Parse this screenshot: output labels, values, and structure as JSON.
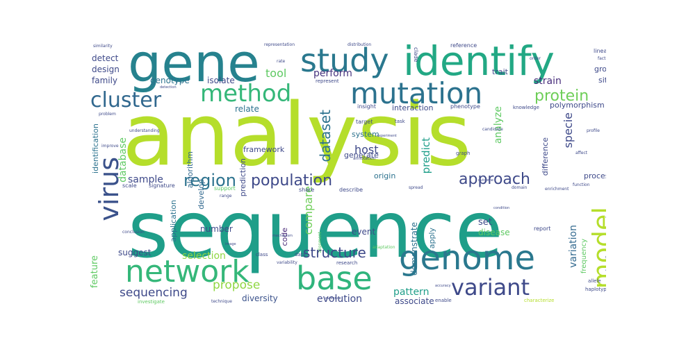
{
  "word_cloud": {
    "words": [
      {
        "id": "analysis",
        "text": "analysis",
        "color": "#b5de2b"
      },
      {
        "id": "sequence",
        "text": "sequence",
        "color": "#1f9e89"
      },
      {
        "id": "gene",
        "text": "gene",
        "color": "#26828e"
      },
      {
        "id": "identify",
        "text": "identify",
        "color": "#22a884"
      },
      {
        "id": "study",
        "text": "study",
        "color": "#2a788e"
      },
      {
        "id": "mutation",
        "text": "mutation",
        "color": "#2c728e"
      },
      {
        "id": "method",
        "text": "method",
        "color": "#35b779"
      },
      {
        "id": "network",
        "text": "network",
        "color": "#35b779"
      },
      {
        "id": "base",
        "text": "base",
        "color": "#2fb47c"
      },
      {
        "id": "genome",
        "text": "genome",
        "color": "#2a788e"
      },
      {
        "id": "variant",
        "text": "variant",
        "color": "#3e4989"
      },
      {
        "id": "cluster",
        "text": "cluster",
        "color": "#31688e"
      },
      {
        "id": "virus",
        "text": "virus",
        "color": "#3b528b"
      },
      {
        "id": "model",
        "text": "model",
        "color": "#b5de2b"
      },
      {
        "id": "population",
        "text": "population",
        "color": "#3e4989"
      },
      {
        "id": "region",
        "text": "region",
        "color": "#2c728e"
      },
      {
        "id": "approach",
        "text": "approach",
        "color": "#3e4989"
      },
      {
        "id": "protein",
        "text": "protein",
        "color": "#6ece58"
      },
      {
        "id": "structure",
        "text": "structure",
        "color": "#3e4989"
      },
      {
        "id": "sequencing",
        "text": "sequencing",
        "color": "#3e4989"
      },
      {
        "id": "propose",
        "text": "propose",
        "color": "#90d743"
      },
      {
        "id": "dataset",
        "text": "dataset",
        "color": "#2c728e"
      },
      {
        "id": "tool",
        "text": "tool",
        "color": "#5ec962"
      },
      {
        "id": "perform",
        "text": "perform",
        "color": "#46337e"
      },
      {
        "id": "host",
        "text": "host",
        "color": "#3e4989"
      },
      {
        "id": "compare",
        "text": "compare",
        "color": "#6ece58"
      },
      {
        "id": "predict",
        "text": "predict",
        "color": "#1f9e89"
      },
      {
        "id": "analyze",
        "text": "analyze",
        "color": "#5ec962"
      },
      {
        "id": "specie",
        "text": "specie",
        "color": "#3e4989"
      },
      {
        "id": "strain",
        "text": "strain",
        "color": "#472d7b"
      },
      {
        "id": "information",
        "text": "information",
        "color": "#3e4989"
      },
      {
        "id": "variation",
        "text": "variation",
        "color": "#31688e"
      },
      {
        "id": "evolution",
        "text": "evolution",
        "color": "#3e4989"
      },
      {
        "id": "diversity",
        "text": "diversity",
        "color": "#3b528b"
      },
      {
        "id": "pattern",
        "text": "pattern",
        "color": "#1f9e89"
      },
      {
        "id": "associate",
        "text": "associate",
        "color": "#3e4989"
      },
      {
        "id": "selection",
        "text": "selection",
        "color": "#90d743"
      },
      {
        "id": "feature",
        "text": "feature",
        "color": "#5ec962"
      },
      {
        "id": "suggest",
        "text": "suggest",
        "color": "#3e4989"
      },
      {
        "id": "number",
        "text": "number",
        "color": "#3e4989"
      },
      {
        "id": "application",
        "text": "application",
        "color": "#2c728e"
      },
      {
        "id": "code",
        "text": "code",
        "color": "#482878"
      },
      {
        "id": "event",
        "text": "event",
        "color": "#3e4989"
      },
      {
        "id": "set",
        "text": "set",
        "color": "#3e4989"
      },
      {
        "id": "disease",
        "text": "disease",
        "color": "#5ec962"
      },
      {
        "id": "demonstrate",
        "text": "demonstrate",
        "color": "#2c728e"
      },
      {
        "id": "apply",
        "text": "apply",
        "color": "#2c728e"
      },
      {
        "id": "sample",
        "text": "sample",
        "color": "#3e4989"
      },
      {
        "id": "database",
        "text": "database",
        "color": "#5ec962"
      },
      {
        "id": "algorithm",
        "text": "algorithm",
        "color": "#31688e"
      },
      {
        "id": "develop",
        "text": "develop",
        "color": "#31688e"
      },
      {
        "id": "prediction",
        "text": "prediction",
        "color": "#3e4989"
      },
      {
        "id": "framework",
        "text": "framework",
        "color": "#3e4989"
      },
      {
        "id": "relate",
        "text": "relate",
        "color": "#2c728e"
      },
      {
        "id": "genotype",
        "text": "genotype",
        "color": "#2c728e"
      },
      {
        "id": "isolate",
        "text": "isolate",
        "color": "#3e4989"
      },
      {
        "id": "design",
        "text": "design",
        "color": "#3e4989"
      },
      {
        "id": "detect",
        "text": "detect",
        "color": "#3e4989"
      },
      {
        "id": "family",
        "text": "family",
        "color": "#3e4989"
      },
      {
        "id": "identification",
        "text": "identification",
        "color": "#2c728e"
      },
      {
        "id": "system",
        "text": "system",
        "color": "#2c728e"
      },
      {
        "id": "generate",
        "text": "generate",
        "color": "#3e4989"
      },
      {
        "id": "origin",
        "text": "origin",
        "color": "#2c728e"
      },
      {
        "id": "interaction",
        "text": "interaction",
        "color": "#3e4989"
      },
      {
        "id": "polymorphism",
        "text": "polymorphism",
        "color": "#3e4989"
      },
      {
        "id": "difference",
        "text": "difference",
        "color": "#3e4989"
      },
      {
        "id": "process",
        "text": "process",
        "color": "#3e4989"
      },
      {
        "id": "frequency",
        "text": "frequency",
        "color": "#5ec962"
      },
      {
        "id": "group",
        "text": "group",
        "color": "#3e4989"
      },
      {
        "id": "site",
        "text": "site",
        "color": "#3e4989"
      },
      {
        "id": "trait",
        "text": "trait",
        "color": "#3e4989"
      },
      {
        "id": "scale",
        "text": "scale",
        "color": "#3e4989"
      },
      {
        "id": "signature",
        "text": "signature",
        "color": "#3e4989"
      },
      {
        "id": "phenotype",
        "text": "phenotype",
        "color": "#3e4989"
      },
      {
        "id": "knowledge",
        "text": "knowledge",
        "color": "#3e4989"
      },
      {
        "id": "target",
        "text": "target",
        "color": "#3e4989"
      },
      {
        "id": "task",
        "text": "task",
        "color": "#3e4989"
      },
      {
        "id": "insight",
        "text": "insight",
        "color": "#3e4989"
      },
      {
        "id": "represent",
        "text": "represent",
        "color": "#3e4989"
      },
      {
        "id": "reference",
        "text": "reference",
        "color": "#3e4989"
      },
      {
        "id": "lineage",
        "text": "lineage",
        "color": "#3e4989"
      },
      {
        "id": "clade",
        "text": "clade",
        "color": "#3e4989"
      },
      {
        "id": "report",
        "text": "report",
        "color": "#3e4989"
      },
      {
        "id": "share",
        "text": "share",
        "color": "#3e4989"
      },
      {
        "id": "describe",
        "text": "describe",
        "color": "#3e4989"
      },
      {
        "id": "research",
        "text": "research",
        "color": "#3e4989"
      },
      {
        "id": "alignment",
        "text": "alignment",
        "color": "#5ec962"
      },
      {
        "id": "enable",
        "text": "enable",
        "color": "#3e4989"
      },
      {
        "id": "characterize",
        "text": "characterize",
        "color": "#b5de2b"
      },
      {
        "id": "allele",
        "text": "allele",
        "color": "#3e4989"
      },
      {
        "id": "haplotype",
        "text": "haplotype",
        "color": "#3e4989"
      },
      {
        "id": "investigate",
        "text": "investigate",
        "color": "#5ec962"
      },
      {
        "id": "data",
        "text": "data",
        "color": "#3e4989"
      },
      {
        "id": "class",
        "text": "class",
        "color": "#3e4989"
      },
      {
        "id": "conclusion",
        "text": "conclusion",
        "color": "#3e4989"
      },
      {
        "id": "understanding",
        "text": "understanding",
        "color": "#3e4989"
      },
      {
        "id": "graph",
        "text": "graph",
        "color": "#3e4989"
      },
      {
        "id": "candidate",
        "text": "candidate",
        "color": "#3e4989"
      },
      {
        "id": "support",
        "text": "support",
        "color": "#5ec962"
      },
      {
        "id": "range",
        "text": "range",
        "color": "#3e4989"
      },
      {
        "id": "spread",
        "text": "spread",
        "color": "#3e4989"
      },
      {
        "id": "function",
        "text": "function",
        "color": "#3e4989"
      },
      {
        "id": "profile",
        "text": "profile",
        "color": "#3e4989"
      },
      {
        "id": "annotation",
        "text": "annotation",
        "color": "#3e4989"
      },
      {
        "id": "representation",
        "text": "representation",
        "color": "#3e4989"
      },
      {
        "id": "distribution",
        "text": "distribution",
        "color": "#3e4989"
      },
      {
        "id": "similarity",
        "text": "similarity",
        "color": "#3e4989"
      },
      {
        "id": "factor",
        "text": "factor",
        "color": "#3e4989"
      },
      {
        "id": "collect",
        "text": "collect",
        "color": "#3e4989"
      },
      {
        "id": "order",
        "text": "order",
        "color": "#3e4989"
      },
      {
        "id": "affect",
        "text": "affect",
        "color": "#3e4989"
      },
      {
        "id": "improve",
        "text": "improve",
        "color": "#3e4989"
      },
      {
        "id": "problem",
        "text": "problem",
        "color": "#3e4989"
      },
      {
        "id": "image",
        "text": "image",
        "color": "#3e4989"
      },
      {
        "id": "rate",
        "text": "rate",
        "color": "#3e4989"
      },
      {
        "id": "mechanism",
        "text": "mechanism",
        "color": "#3e4989"
      },
      {
        "id": "technique",
        "text": "technique",
        "color": "#3e4989"
      },
      {
        "id": "variability",
        "text": "variability",
        "color": "#3e4989"
      },
      {
        "id": "experiment",
        "text": "experiment",
        "color": "#3e4989"
      },
      {
        "id": "adaptation",
        "text": "adaptation",
        "color": "#5ec962"
      },
      {
        "id": "condition",
        "text": "condition",
        "color": "#3e4989"
      },
      {
        "id": "accuracy",
        "text": "accuracy",
        "color": "#3e4989"
      },
      {
        "id": "detection",
        "text": "detection",
        "color": "#3e4989"
      },
      {
        "id": "outcome",
        "text": "outcome",
        "color": "#3e4989"
      },
      {
        "id": "evidence",
        "text": "evidence",
        "color": "#3e4989"
      },
      {
        "id": "domain",
        "text": "domain",
        "color": "#3e4989"
      },
      {
        "id": "enrichment",
        "text": "enrichment",
        "color": "#3e4989"
      }
    ]
  }
}
